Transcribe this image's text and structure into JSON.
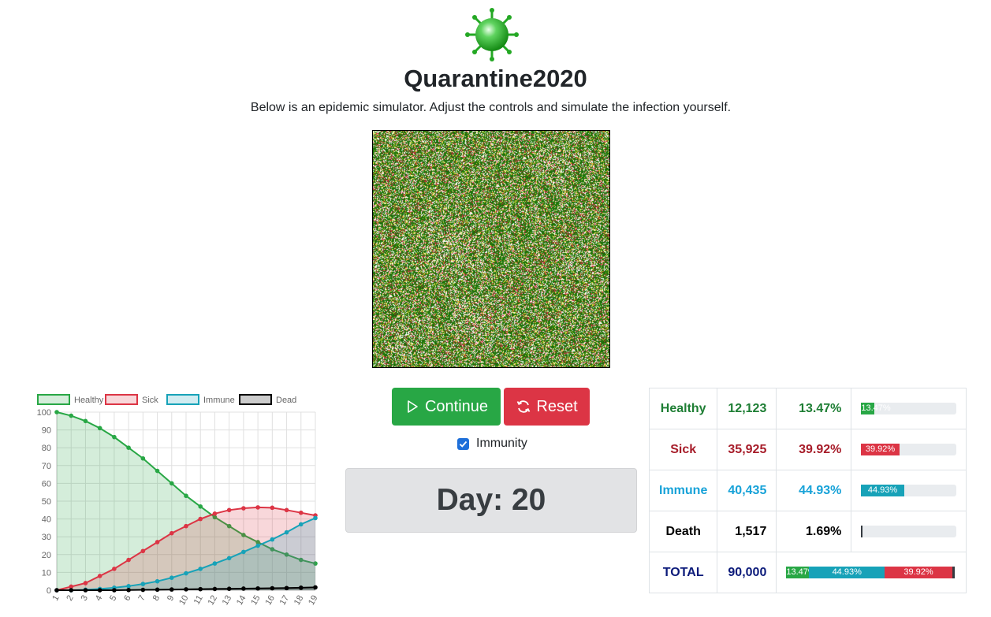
{
  "app": {
    "title": "Quarantine2020",
    "subtitle": "Below is an epidemic simulator. Adjust the controls and simulate the infection yourself."
  },
  "controls": {
    "continue_label": "Continue",
    "reset_label": "Reset",
    "immunity_label": "Immunity",
    "immunity_checked": true
  },
  "day": {
    "label": "Day: 20"
  },
  "colors": {
    "healthy": "#28a745",
    "sick": "#dc3545",
    "immune": "#17a2b8",
    "dead": "#000000",
    "sim_green": "#2f7d14"
  },
  "stats": {
    "rows": [
      {
        "label": "Healthy",
        "count": "12,123",
        "percent": "13.47%",
        "bar_text": "13.47%",
        "fraction": 0.1347,
        "color": "#28a745"
      },
      {
        "label": "Sick",
        "count": "35,925",
        "percent": "39.92%",
        "bar_text": "39.92%",
        "fraction": 0.3992,
        "color": "#dc3545"
      },
      {
        "label": "Immune",
        "count": "40,435",
        "percent": "44.93%",
        "bar_text": "44.93%",
        "fraction": 0.4493,
        "color": "#17a2b8"
      },
      {
        "label": "Death",
        "count": "1,517",
        "percent": "1.69%",
        "bar_text": "",
        "fraction": 0.0169,
        "color": "#343a40"
      }
    ],
    "total": {
      "label": "TOTAL",
      "count": "90,000",
      "segments": [
        {
          "text": "13.47%",
          "fraction": 0.1347,
          "color": "#28a745"
        },
        {
          "text": "44.93%",
          "fraction": 0.4493,
          "color": "#17a2b8"
        },
        {
          "text": "39.92%",
          "fraction": 0.3992,
          "color": "#dc3545"
        },
        {
          "text": "",
          "fraction": 0.0169,
          "color": "#343a40"
        }
      ]
    }
  },
  "chart_data": {
    "type": "line",
    "x": [
      "1",
      "2",
      "3",
      "4",
      "5",
      "6",
      "7",
      "8",
      "9",
      "10",
      "11",
      "12",
      "13",
      "14",
      "15",
      "16",
      "17",
      "18",
      "19"
    ],
    "ylim": [
      0,
      100
    ],
    "yticks": [
      0,
      10,
      20,
      30,
      40,
      50,
      60,
      70,
      80,
      90,
      100
    ],
    "grid": true,
    "legend": "top",
    "series": [
      {
        "name": "Healthy",
        "color": "#28a745",
        "fill": "rgba(40,167,69,0.2)",
        "values": [
          100,
          98,
          95,
          91,
          86,
          80,
          74,
          67,
          60,
          53,
          47,
          41,
          36,
          31,
          27,
          23,
          20,
          17,
          15
        ]
      },
      {
        "name": "Sick",
        "color": "#dc3545",
        "fill": "rgba(220,53,69,0.2)",
        "values": [
          0,
          2,
          4,
          8,
          12,
          17,
          22,
          27,
          32,
          36,
          40,
          43,
          45,
          46,
          46.5,
          46.3,
          45,
          43.5,
          42
        ]
      },
      {
        "name": "Immune",
        "color": "#17a2b8",
        "fill": "rgba(23,162,184,0.2)",
        "values": [
          0,
          0,
          0.3,
          0.7,
          1.4,
          2.3,
          3.5,
          5,
          7,
          9.5,
          12,
          15,
          18,
          21.5,
          25,
          28.5,
          32.5,
          37,
          40.5
        ]
      },
      {
        "name": "Dead",
        "color": "#000000",
        "fill": "rgba(0,0,0,0.2)",
        "values": [
          0,
          0,
          0,
          0,
          0,
          0.1,
          0.2,
          0.3,
          0.4,
          0.5,
          0.6,
          0.7,
          0.8,
          0.9,
          1.0,
          1.1,
          1.2,
          1.4,
          1.6
        ]
      }
    ]
  }
}
